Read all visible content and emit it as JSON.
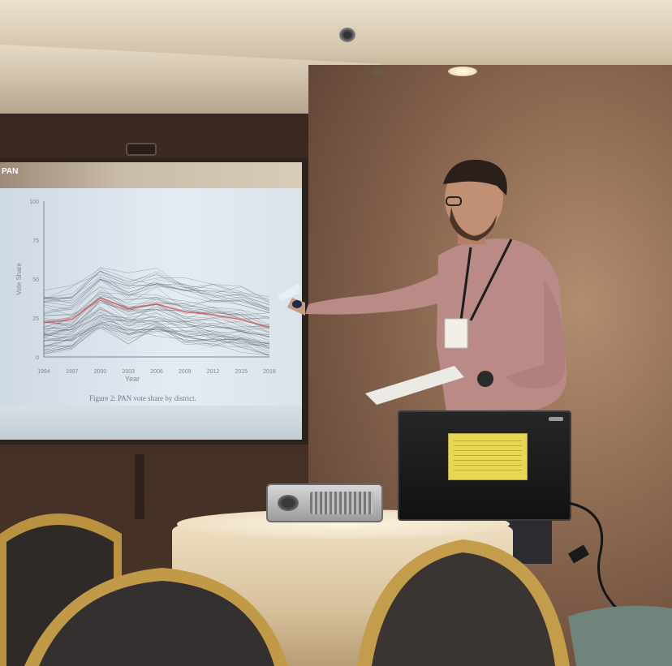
{
  "slide": {
    "title": "PAN",
    "caption": "Figure 2: PAN vote share by district.",
    "y_axis_label": "Vote Share",
    "x_axis_label": "Year",
    "y_ticks": [
      "100",
      "75",
      "50",
      "25",
      "0"
    ],
    "x_ticks": [
      "1994",
      "1997",
      "2000",
      "2003",
      "2006",
      "2009",
      "2012",
      "2015",
      "2018"
    ]
  },
  "chart_data": {
    "type": "line",
    "title": "PAN",
    "xlabel": "Year",
    "ylabel": "Vote Share",
    "ylim": [
      0,
      100
    ],
    "x": [
      1994,
      1997,
      2000,
      2003,
      2006,
      2009,
      2012,
      2015,
      2018
    ],
    "series": [
      {
        "values": [
          22,
          24,
          38,
          31,
          34,
          29,
          27,
          24,
          19
        ]
      }
    ]
  },
  "colors": {
    "slide_background": "#e1e9f1",
    "district_lines": "#4a4f5a",
    "average_line": "#d9534f",
    "wall": "#8d6a52",
    "laptop_sticker": "#e7d755"
  }
}
